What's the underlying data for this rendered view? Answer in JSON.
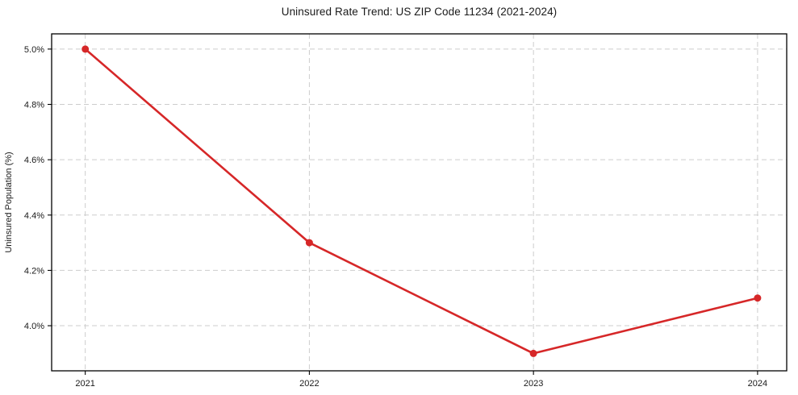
{
  "chart_data": {
    "type": "line",
    "title": "Uninsured Rate Trend: US ZIP Code 11234 (2021-2024)",
    "xlabel": "",
    "ylabel": "Uninsured Population (%)",
    "x": [
      2021,
      2022,
      2023,
      2024
    ],
    "values": [
      5.0,
      4.3,
      3.9,
      4.1
    ],
    "xticks": {
      "values": [
        2021,
        2022,
        2023,
        2024
      ],
      "labels": [
        "2021",
        "2022",
        "2023",
        "2024"
      ]
    },
    "yticks": {
      "values": [
        4.0,
        4.2,
        4.4,
        4.6,
        4.8,
        5.0
      ],
      "labels": [
        "4.0%",
        "4.2%",
        "4.4%",
        "4.6%",
        "4.8%",
        "5.0%"
      ]
    },
    "xlim": [
      2020.85,
      2024.13
    ],
    "ylim": [
      3.837,
      5.055
    ],
    "grid": "dashed-both",
    "legend": "none",
    "marker": "circle",
    "colors": {
      "line": "#d62728",
      "grid": "#cdcdcd",
      "frame": "#000000",
      "text": "#1a1a1a",
      "background": "#ffffff"
    }
  }
}
